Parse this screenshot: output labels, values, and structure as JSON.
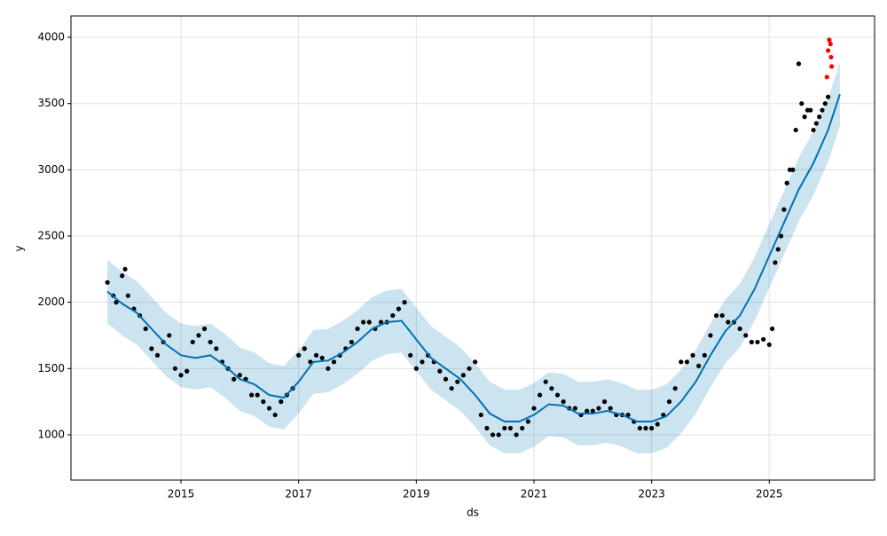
{
  "chart_data": {
    "type": "line",
    "xlabel": "ds",
    "ylabel": "y",
    "xlim": [
      2013.13,
      2026.79
    ],
    "ylim": [
      658,
      4161
    ],
    "xticks": [
      2015,
      2017,
      2019,
      2021,
      2023,
      2025
    ],
    "yticks": [
      1000,
      1500,
      2000,
      2500,
      3000,
      3500,
      4000
    ],
    "grid": true,
    "forecast": {
      "color": "#0072B2",
      "x": [
        2013.75,
        2014.0,
        2014.25,
        2014.5,
        2014.75,
        2015.0,
        2015.25,
        2015.5,
        2015.75,
        2016.0,
        2016.25,
        2016.5,
        2016.75,
        2017.0,
        2017.25,
        2017.5,
        2017.75,
        2018.0,
        2018.25,
        2018.5,
        2018.75,
        2019.0,
        2019.25,
        2019.5,
        2019.75,
        2020.0,
        2020.25,
        2020.5,
        2020.75,
        2021.0,
        2021.25,
        2021.5,
        2021.75,
        2022.0,
        2022.25,
        2022.5,
        2022.75,
        2023.0,
        2023.25,
        2023.5,
        2023.75,
        2024.0,
        2024.25,
        2024.5,
        2024.75,
        2025.0,
        2025.25,
        2025.5,
        2025.75,
        2026.0,
        2026.2
      ],
      "values": [
        2080,
        1990,
        1920,
        1800,
        1680,
        1600,
        1580,
        1600,
        1520,
        1420,
        1380,
        1300,
        1280,
        1400,
        1550,
        1560,
        1620,
        1700,
        1800,
        1850,
        1860,
        1720,
        1580,
        1500,
        1420,
        1300,
        1160,
        1100,
        1100,
        1150,
        1230,
        1220,
        1160,
        1160,
        1180,
        1150,
        1100,
        1100,
        1140,
        1250,
        1400,
        1600,
        1780,
        1900,
        2100,
        2350,
        2600,
        2850,
        3050,
        3300,
        3570
      ],
      "upper": [
        2320,
        2230,
        2160,
        2040,
        1920,
        1840,
        1820,
        1840,
        1760,
        1660,
        1620,
        1540,
        1520,
        1640,
        1790,
        1800,
        1860,
        1940,
        2040,
        2090,
        2100,
        1960,
        1820,
        1740,
        1660,
        1540,
        1400,
        1340,
        1340,
        1390,
        1470,
        1460,
        1400,
        1400,
        1420,
        1390,
        1340,
        1340,
        1380,
        1490,
        1640,
        1840,
        2020,
        2140,
        2340,
        2590,
        2840,
        3090,
        3290,
        3540,
        3810
      ],
      "lower": [
        1840,
        1750,
        1680,
        1560,
        1440,
        1360,
        1340,
        1360,
        1280,
        1180,
        1140,
        1060,
        1040,
        1160,
        1310,
        1320,
        1380,
        1460,
        1560,
        1610,
        1620,
        1480,
        1340,
        1260,
        1180,
        1060,
        920,
        860,
        860,
        910,
        990,
        980,
        920,
        920,
        940,
        910,
        860,
        860,
        900,
        1010,
        1160,
        1360,
        1540,
        1660,
        1860,
        2110,
        2360,
        2610,
        2810,
        3060,
        3330
      ]
    },
    "observed": {
      "color": "#000000",
      "x": [
        2013.75,
        2013.85,
        2013.9,
        2014.0,
        2014.05,
        2014.1,
        2014.2,
        2014.3,
        2014.4,
        2014.5,
        2014.6,
        2014.7,
        2014.8,
        2014.9,
        2015.0,
        2015.1,
        2015.2,
        2015.3,
        2015.4,
        2015.5,
        2015.6,
        2015.7,
        2015.8,
        2015.9,
        2016.0,
        2016.1,
        2016.2,
        2016.3,
        2016.4,
        2016.5,
        2016.6,
        2016.7,
        2016.8,
        2016.9,
        2017.0,
        2017.1,
        2017.2,
        2017.3,
        2017.4,
        2017.5,
        2017.6,
        2017.7,
        2017.8,
        2017.9,
        2018.0,
        2018.1,
        2018.2,
        2018.3,
        2018.4,
        2018.5,
        2018.6,
        2018.7,
        2018.8,
        2018.9,
        2019.0,
        2019.1,
        2019.2,
        2019.3,
        2019.4,
        2019.5,
        2019.6,
        2019.7,
        2019.8,
        2019.9,
        2020.0,
        2020.1,
        2020.2,
        2020.3,
        2020.4,
        2020.5,
        2020.6,
        2020.7,
        2020.8,
        2020.9,
        2021.0,
        2021.1,
        2021.2,
        2021.3,
        2021.4,
        2021.5,
        2021.6,
        2021.7,
        2021.8,
        2021.9,
        2022.0,
        2022.1,
        2022.2,
        2022.3,
        2022.4,
        2022.5,
        2022.6,
        2022.7,
        2022.8,
        2022.9,
        2023.0,
        2023.1,
        2023.2,
        2023.3,
        2023.4,
        2023.5,
        2023.6,
        2023.7,
        2023.8,
        2023.9,
        2024.0,
        2024.1,
        2024.2,
        2024.3,
        2024.4,
        2024.5,
        2024.6,
        2024.7,
        2024.8,
        2024.9,
        2025.0,
        2025.05,
        2025.1,
        2025.15,
        2025.2,
        2025.25,
        2025.3,
        2025.35,
        2025.4,
        2025.45,
        2025.5,
        2025.55,
        2025.6,
        2025.65,
        2025.7,
        2025.75,
        2025.8,
        2025.85,
        2025.9,
        2025.95,
        2026.0
      ],
      "values": [
        2150,
        2050,
        2000,
        2200,
        2250,
        2050,
        1950,
        1900,
        1800,
        1650,
        1600,
        1700,
        1750,
        1500,
        1450,
        1480,
        1700,
        1750,
        1800,
        1700,
        1650,
        1550,
        1500,
        1420,
        1450,
        1420,
        1300,
        1300,
        1250,
        1200,
        1150,
        1250,
        1300,
        1350,
        1600,
        1650,
        1550,
        1600,
        1580,
        1500,
        1550,
        1600,
        1650,
        1700,
        1800,
        1850,
        1850,
        1800,
        1850,
        1850,
        1900,
        1950,
        2000,
        1600,
        1500,
        1550,
        1600,
        1550,
        1480,
        1420,
        1350,
        1400,
        1450,
        1500,
        1550,
        1150,
        1050,
        1000,
        1000,
        1050,
        1050,
        1000,
        1050,
        1100,
        1200,
        1300,
        1400,
        1350,
        1300,
        1250,
        1200,
        1200,
        1150,
        1180,
        1180,
        1200,
        1250,
        1200,
        1150,
        1150,
        1150,
        1100,
        1050,
        1050,
        1050,
        1080,
        1150,
        1250,
        1350,
        1550,
        1550,
        1600,
        1520,
        1600,
        1750,
        1900,
        1900,
        1850,
        1850,
        1800,
        1750,
        1700,
        1700,
        1720,
        1680,
        1800,
        2300,
        2400,
        2500,
        2700,
        2900,
        3000,
        3000,
        3300,
        3800,
        3500,
        3400,
        3450,
        3450,
        3300,
        3350,
        3400,
        3450,
        3500,
        3550
      ]
    },
    "recent": {
      "color": "#ff0000",
      "x": [
        2025.98,
        2026.0,
        2026.02,
        2026.04,
        2026.05,
        2026.06
      ],
      "values": [
        3700,
        3900,
        3980,
        3950,
        3850,
        3780
      ]
    }
  }
}
